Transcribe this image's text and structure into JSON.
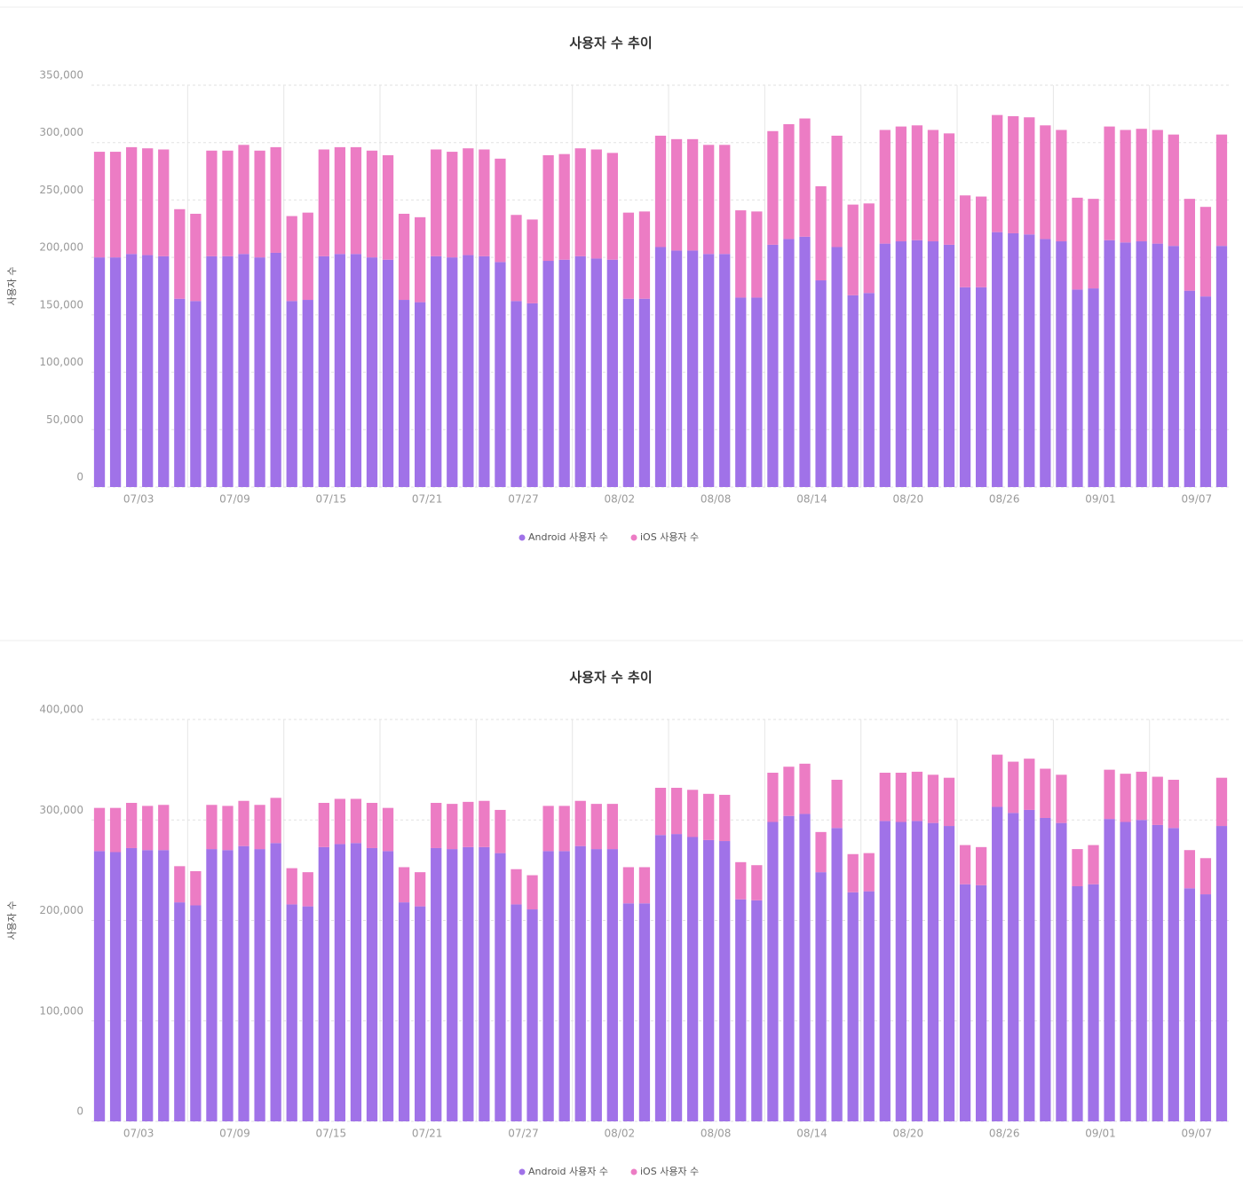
{
  "chart_data": [
    {
      "type": "bar",
      "stacked": true,
      "title": "사용자 수 추이",
      "y_label": "사용자 수",
      "grid": true,
      "categories": [
        null,
        null,
        "07/03",
        null,
        null,
        null,
        null,
        null,
        "07/09",
        null,
        null,
        null,
        null,
        null,
        "07/15",
        null,
        null,
        null,
        null,
        null,
        "07/21",
        null,
        null,
        null,
        null,
        null,
        "07/27",
        null,
        null,
        null,
        null,
        null,
        "08/02",
        null,
        null,
        null,
        null,
        null,
        "08/08",
        null,
        null,
        null,
        null,
        null,
        "08/14",
        null,
        null,
        null,
        null,
        null,
        "08/20",
        null,
        null,
        null,
        null,
        null,
        "08/26",
        null,
        null,
        null,
        null,
        null,
        "09/01",
        null,
        null,
        null,
        null,
        null,
        "09/07",
        null,
        null
      ],
      "series": [
        {
          "name": "Android 사용자 수",
          "color": "#a072e8",
          "values": [
            200000,
            200000,
            203000,
            202000,
            201000,
            164000,
            162000,
            201000,
            201000,
            203000,
            200000,
            204000,
            162000,
            163000,
            201000,
            203000,
            203000,
            200000,
            198000,
            163000,
            161000,
            201000,
            200000,
            202000,
            201000,
            196000,
            162000,
            160000,
            197000,
            198000,
            201000,
            199000,
            198000,
            164000,
            164000,
            209000,
            206000,
            206000,
            203000,
            203000,
            165000,
            165000,
            211000,
            216000,
            218000,
            180000,
            209000,
            167000,
            169000,
            212000,
            214000,
            215000,
            214000,
            211000,
            174000,
            174000,
            222000,
            221000,
            220000,
            216000,
            214000,
            172000,
            173000,
            215000,
            213000,
            214000,
            212000,
            210000,
            171000,
            166000,
            210000
          ]
        },
        {
          "name": "iOS 사용자 수",
          "color": "#ec7cc4",
          "values": [
            92000,
            92000,
            93000,
            93000,
            93000,
            78000,
            76000,
            92000,
            92000,
            95000,
            93000,
            92000,
            74000,
            76000,
            93000,
            93000,
            93000,
            93000,
            91000,
            75000,
            74000,
            93000,
            92000,
            93000,
            93000,
            90000,
            75000,
            73000,
            92000,
            92000,
            94000,
            95000,
            93000,
            75000,
            76000,
            97000,
            97000,
            97000,
            95000,
            95000,
            76000,
            75000,
            99000,
            100000,
            103000,
            82000,
            97000,
            79000,
            78000,
            99000,
            100000,
            100000,
            97000,
            97000,
            80000,
            79000,
            102000,
            102000,
            102000,
            99000,
            97000,
            80000,
            78000,
            99000,
            98000,
            98000,
            99000,
            97000,
            80000,
            78000,
            97000
          ]
        }
      ],
      "ylim": [
        0,
        350000
      ],
      "yticks": [
        0,
        {
          "value": 50000,
          "label": "50,000"
        },
        {
          "value": 100000,
          "label": "100,000"
        },
        {
          "value": 150000,
          "label": "150,000"
        },
        {
          "value": 200000,
          "label": "200,000"
        },
        {
          "value": 250000,
          "label": "250,000"
        },
        {
          "value": 300000,
          "label": "300,000"
        },
        {
          "value": 350000,
          "label": "350,000"
        }
      ]
    },
    {
      "type": "bar",
      "stacked": true,
      "title": "사용자 수 추이",
      "y_label": "사용자 수",
      "grid": true,
      "categories": [
        null,
        null,
        "07/03",
        null,
        null,
        null,
        null,
        null,
        "07/09",
        null,
        null,
        null,
        null,
        null,
        "07/15",
        null,
        null,
        null,
        null,
        null,
        "07/21",
        null,
        null,
        null,
        null,
        null,
        "07/27",
        null,
        null,
        null,
        null,
        null,
        "08/02",
        null,
        null,
        null,
        null,
        null,
        "08/08",
        null,
        null,
        null,
        null,
        null,
        "08/14",
        null,
        null,
        null,
        null,
        null,
        "08/20",
        null,
        null,
        null,
        null,
        null,
        "08/26",
        null,
        null,
        null,
        null,
        null,
        "09/01",
        null,
        null,
        null,
        null,
        null,
        "09/07",
        null,
        null
      ],
      "series": [
        {
          "name": "Android 사용자 수",
          "color": "#a072e8",
          "values": [
            269000,
            268000,
            272000,
            270000,
            270000,
            218000,
            215000,
            271000,
            270000,
            274000,
            271000,
            277000,
            216000,
            214000,
            273000,
            276000,
            277000,
            272000,
            269000,
            218000,
            214000,
            272000,
            271000,
            273000,
            273000,
            267000,
            216000,
            211000,
            269000,
            269000,
            274000,
            271000,
            271000,
            217000,
            217000,
            285000,
            286000,
            283000,
            280000,
            279000,
            221000,
            220000,
            298000,
            304000,
            306000,
            248000,
            292000,
            228000,
            229000,
            299000,
            298000,
            299000,
            297000,
            294000,
            236000,
            235000,
            313000,
            307000,
            310000,
            302000,
            297000,
            234000,
            236000,
            301000,
            298000,
            300000,
            295000,
            292000,
            232000,
            226000,
            294000
          ]
        },
        {
          "name": "iOS 사용자 수",
          "color": "#ec7cc4",
          "values": [
            43000,
            44000,
            45000,
            44000,
            45000,
            36000,
            34000,
            44000,
            44000,
            45000,
            44000,
            45000,
            36000,
            34000,
            44000,
            45000,
            44000,
            45000,
            43000,
            35000,
            34000,
            45000,
            45000,
            45000,
            46000,
            43000,
            35000,
            34000,
            45000,
            45000,
            45000,
            45000,
            45000,
            36000,
            36000,
            47000,
            46000,
            47000,
            46000,
            46000,
            37000,
            35000,
            49000,
            49000,
            50000,
            40000,
            48000,
            38000,
            38000,
            48000,
            49000,
            49000,
            48000,
            48000,
            39000,
            38000,
            52000,
            51000,
            51000,
            49000,
            48000,
            37000,
            39000,
            49000,
            48000,
            48000,
            48000,
            48000,
            38000,
            36000,
            48000
          ]
        }
      ],
      "ylim": [
        0,
        400000
      ],
      "yticks": [
        0,
        {
          "value": 100000,
          "label": "100,000"
        },
        {
          "value": 200000,
          "label": "200,000"
        },
        {
          "value": 300000,
          "label": "300,000"
        },
        {
          "value": 400000,
          "label": "400,000"
        }
      ]
    }
  ]
}
